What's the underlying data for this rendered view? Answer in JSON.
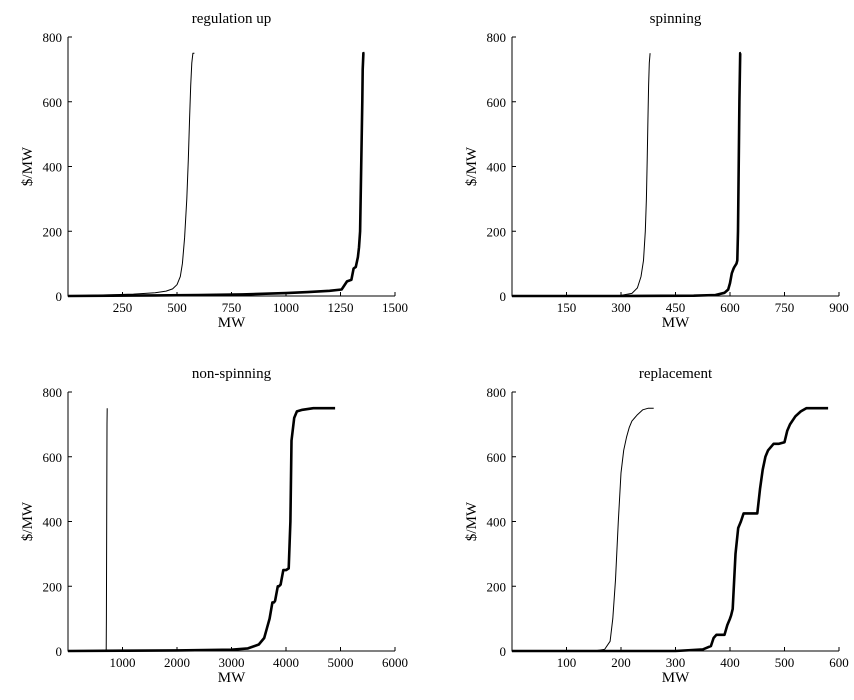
{
  "chart_data": [
    {
      "type": "line",
      "title": "regulation up",
      "xlabel": "MW",
      "ylabel": "$/MW",
      "xlim": [
        0,
        1500
      ],
      "ylim": [
        0,
        800
      ],
      "xticks": [
        250,
        500,
        750,
        1000,
        1250,
        1500
      ],
      "yticks": [
        0,
        200,
        400,
        600,
        800
      ],
      "grid": false,
      "series": [
        {
          "style": "thin",
          "x": [
            0,
            100,
            200,
            300,
            400,
            450,
            480,
            500,
            515,
            525,
            535,
            545,
            552,
            558,
            563,
            568,
            573,
            580
          ],
          "y": [
            0,
            2,
            4,
            6,
            10,
            15,
            22,
            35,
            60,
            100,
            180,
            300,
            420,
            550,
            650,
            720,
            750,
            750
          ]
        },
        {
          "style": "thick",
          "x": [
            0,
            200,
            400,
            600,
            800,
            1000,
            1100,
            1200,
            1255,
            1260,
            1280,
            1300,
            1310,
            1320,
            1330,
            1335,
            1340,
            1345,
            1350,
            1352,
            1355,
            1360
          ],
          "y": [
            0,
            1,
            2,
            3,
            5,
            9,
            12,
            16,
            20,
            25,
            45,
            50,
            85,
            90,
            120,
            150,
            200,
            400,
            600,
            700,
            750,
            750
          ]
        }
      ]
    },
    {
      "type": "line",
      "title": "spinning",
      "xlabel": "MW",
      "ylabel": "$/MW",
      "xlim": [
        0,
        900
      ],
      "ylim": [
        0,
        800
      ],
      "xticks": [
        150,
        300,
        450,
        600,
        750,
        900
      ],
      "yticks": [
        0,
        200,
        400,
        600,
        800
      ],
      "grid": false,
      "series": [
        {
          "style": "thin",
          "x": [
            0,
            200,
            300,
            330,
            345,
            355,
            362,
            367,
            370,
            372,
            374,
            376,
            378,
            380
          ],
          "y": [
            0,
            0,
            2,
            8,
            25,
            60,
            110,
            200,
            300,
            420,
            540,
            650,
            720,
            750
          ]
        },
        {
          "style": "thick",
          "x": [
            0,
            300,
            500,
            560,
            585,
            595,
            600,
            605,
            610,
            612,
            615,
            618,
            620,
            622,
            624,
            626,
            628,
            630
          ],
          "y": [
            0,
            0,
            1,
            3,
            10,
            20,
            40,
            70,
            85,
            90,
            95,
            100,
            110,
            200,
            400,
            600,
            750,
            750
          ]
        }
      ]
    },
    {
      "type": "line",
      "title": "non-spinning",
      "xlabel": "MW",
      "ylabel": "$/MW",
      "xlim": [
        0,
        6000
      ],
      "ylim": [
        0,
        800
      ],
      "xticks": [
        1000,
        2000,
        3000,
        4000,
        5000,
        6000
      ],
      "yticks": [
        0,
        200,
        400,
        600,
        800
      ],
      "grid": false,
      "series": [
        {
          "style": "thin",
          "x": [
            0,
            600,
            680,
            700,
            705,
            710,
            715,
            720
          ],
          "y": [
            0,
            0,
            1,
            5,
            100,
            400,
            700,
            750
          ]
        },
        {
          "style": "thick",
          "x": [
            0,
            1000,
            2000,
            3000,
            3300,
            3500,
            3600,
            3650,
            3700,
            3750,
            3780,
            3800,
            3850,
            3870,
            3900,
            3950,
            4000,
            4050,
            4080,
            4100,
            4150,
            4200,
            4300,
            4500,
            4800,
            4900
          ],
          "y": [
            0,
            1,
            2,
            4,
            8,
            20,
            40,
            70,
            100,
            150,
            150,
            155,
            200,
            200,
            205,
            250,
            250,
            255,
            400,
            650,
            720,
            740,
            745,
            750,
            750,
            750
          ]
        }
      ]
    },
    {
      "type": "line",
      "title": "replacement",
      "xlabel": "MW",
      "ylabel": "$/MW",
      "xlim": [
        0,
        600
      ],
      "ylim": [
        0,
        800
      ],
      "xticks": [
        100,
        200,
        300,
        400,
        500,
        600
      ],
      "yticks": [
        0,
        200,
        400,
        600,
        800
      ],
      "grid": false,
      "series": [
        {
          "style": "thin",
          "x": [
            0,
            150,
            170,
            180,
            185,
            190,
            195,
            200,
            205,
            210,
            215,
            220,
            230,
            240,
            250,
            260
          ],
          "y": [
            0,
            0,
            5,
            30,
            100,
            220,
            400,
            550,
            620,
            660,
            690,
            710,
            730,
            745,
            750,
            750
          ]
        },
        {
          "style": "thick",
          "x": [
            0,
            300,
            350,
            365,
            370,
            375,
            390,
            395,
            400,
            402,
            405,
            410,
            415,
            420,
            425,
            430,
            440,
            450,
            455,
            460,
            465,
            470,
            480,
            490,
            500,
            505,
            510,
            520,
            530,
            540,
            560,
            580
          ],
          "y": [
            0,
            0,
            5,
            15,
            40,
            50,
            50,
            80,
            100,
            110,
            130,
            300,
            380,
            400,
            425,
            425,
            425,
            425,
            500,
            560,
            600,
            620,
            640,
            640,
            645,
            680,
            700,
            725,
            740,
            750,
            750,
            750
          ]
        }
      ]
    }
  ]
}
